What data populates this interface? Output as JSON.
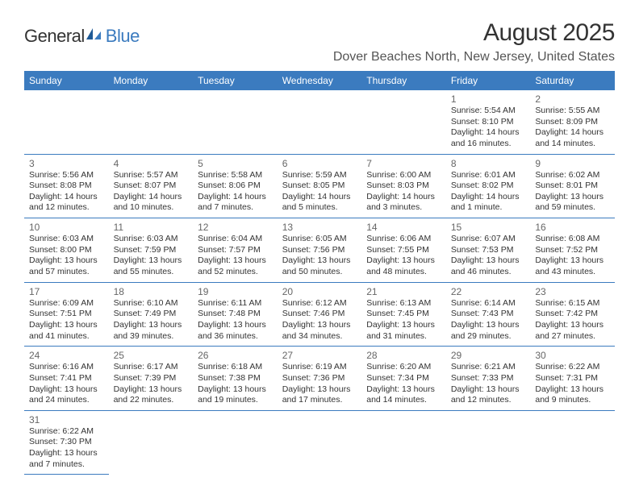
{
  "logo": {
    "text1": "General",
    "text2": "Blue"
  },
  "title": "August 2025",
  "location": "Dover Beaches North, New Jersey, United States",
  "colors": {
    "header_bg": "#3b7bbf",
    "header_text": "#ffffff",
    "border": "#3b7bbf",
    "text": "#333333",
    "logo_blue": "#3b7bbf"
  },
  "dayNames": [
    "Sunday",
    "Monday",
    "Tuesday",
    "Wednesday",
    "Thursday",
    "Friday",
    "Saturday"
  ],
  "weeks": [
    [
      null,
      null,
      null,
      null,
      null,
      {
        "n": "1",
        "sr": "5:54 AM",
        "ss": "8:10 PM",
        "dl": "14 hours and 16 minutes."
      },
      {
        "n": "2",
        "sr": "5:55 AM",
        "ss": "8:09 PM",
        "dl": "14 hours and 14 minutes."
      }
    ],
    [
      {
        "n": "3",
        "sr": "5:56 AM",
        "ss": "8:08 PM",
        "dl": "14 hours and 12 minutes."
      },
      {
        "n": "4",
        "sr": "5:57 AM",
        "ss": "8:07 PM",
        "dl": "14 hours and 10 minutes."
      },
      {
        "n": "5",
        "sr": "5:58 AM",
        "ss": "8:06 PM",
        "dl": "14 hours and 7 minutes."
      },
      {
        "n": "6",
        "sr": "5:59 AM",
        "ss": "8:05 PM",
        "dl": "14 hours and 5 minutes."
      },
      {
        "n": "7",
        "sr": "6:00 AM",
        "ss": "8:03 PM",
        "dl": "14 hours and 3 minutes."
      },
      {
        "n": "8",
        "sr": "6:01 AM",
        "ss": "8:02 PM",
        "dl": "14 hours and 1 minute."
      },
      {
        "n": "9",
        "sr": "6:02 AM",
        "ss": "8:01 PM",
        "dl": "13 hours and 59 minutes."
      }
    ],
    [
      {
        "n": "10",
        "sr": "6:03 AM",
        "ss": "8:00 PM",
        "dl": "13 hours and 57 minutes."
      },
      {
        "n": "11",
        "sr": "6:03 AM",
        "ss": "7:59 PM",
        "dl": "13 hours and 55 minutes."
      },
      {
        "n": "12",
        "sr": "6:04 AM",
        "ss": "7:57 PM",
        "dl": "13 hours and 52 minutes."
      },
      {
        "n": "13",
        "sr": "6:05 AM",
        "ss": "7:56 PM",
        "dl": "13 hours and 50 minutes."
      },
      {
        "n": "14",
        "sr": "6:06 AM",
        "ss": "7:55 PM",
        "dl": "13 hours and 48 minutes."
      },
      {
        "n": "15",
        "sr": "6:07 AM",
        "ss": "7:53 PM",
        "dl": "13 hours and 46 minutes."
      },
      {
        "n": "16",
        "sr": "6:08 AM",
        "ss": "7:52 PM",
        "dl": "13 hours and 43 minutes."
      }
    ],
    [
      {
        "n": "17",
        "sr": "6:09 AM",
        "ss": "7:51 PM",
        "dl": "13 hours and 41 minutes."
      },
      {
        "n": "18",
        "sr": "6:10 AM",
        "ss": "7:49 PM",
        "dl": "13 hours and 39 minutes."
      },
      {
        "n": "19",
        "sr": "6:11 AM",
        "ss": "7:48 PM",
        "dl": "13 hours and 36 minutes."
      },
      {
        "n": "20",
        "sr": "6:12 AM",
        "ss": "7:46 PM",
        "dl": "13 hours and 34 minutes."
      },
      {
        "n": "21",
        "sr": "6:13 AM",
        "ss": "7:45 PM",
        "dl": "13 hours and 31 minutes."
      },
      {
        "n": "22",
        "sr": "6:14 AM",
        "ss": "7:43 PM",
        "dl": "13 hours and 29 minutes."
      },
      {
        "n": "23",
        "sr": "6:15 AM",
        "ss": "7:42 PM",
        "dl": "13 hours and 27 minutes."
      }
    ],
    [
      {
        "n": "24",
        "sr": "6:16 AM",
        "ss": "7:41 PM",
        "dl": "13 hours and 24 minutes."
      },
      {
        "n": "25",
        "sr": "6:17 AM",
        "ss": "7:39 PM",
        "dl": "13 hours and 22 minutes."
      },
      {
        "n": "26",
        "sr": "6:18 AM",
        "ss": "7:38 PM",
        "dl": "13 hours and 19 minutes."
      },
      {
        "n": "27",
        "sr": "6:19 AM",
        "ss": "7:36 PM",
        "dl": "13 hours and 17 minutes."
      },
      {
        "n": "28",
        "sr": "6:20 AM",
        "ss": "7:34 PM",
        "dl": "13 hours and 14 minutes."
      },
      {
        "n": "29",
        "sr": "6:21 AM",
        "ss": "7:33 PM",
        "dl": "13 hours and 12 minutes."
      },
      {
        "n": "30",
        "sr": "6:22 AM",
        "ss": "7:31 PM",
        "dl": "13 hours and 9 minutes."
      }
    ],
    [
      {
        "n": "31",
        "sr": "6:22 AM",
        "ss": "7:30 PM",
        "dl": "13 hours and 7 minutes."
      },
      null,
      null,
      null,
      null,
      null,
      null
    ]
  ],
  "labels": {
    "sunrise": "Sunrise:",
    "sunset": "Sunset:",
    "daylight": "Daylight:"
  }
}
